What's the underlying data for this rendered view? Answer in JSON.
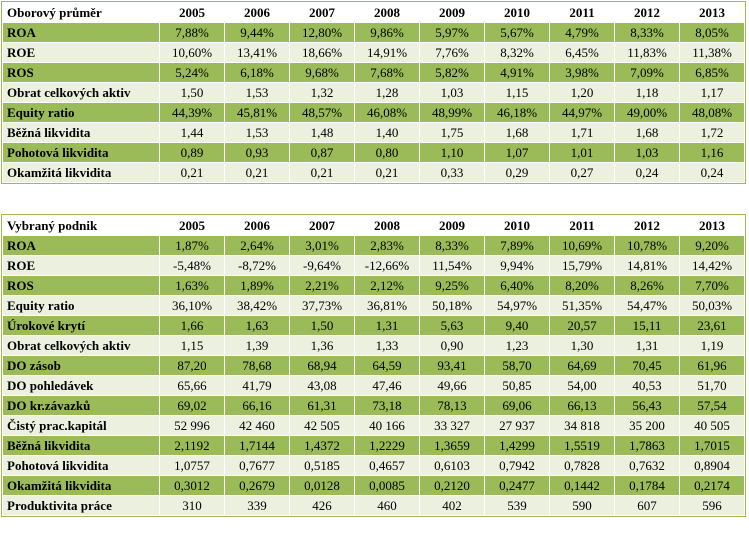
{
  "tables": [
    {
      "title": "Oborový průměr",
      "years": [
        "2005",
        "2006",
        "2007",
        "2008",
        "2009",
        "2010",
        "2011",
        "2012",
        "2013"
      ],
      "rows": [
        {
          "label": "ROA",
          "values": [
            "7,88%",
            "9,44%",
            "12,80%",
            "9,86%",
            "5,97%",
            "5,67%",
            "4,79%",
            "8,33%",
            "8,05%"
          ]
        },
        {
          "label": "ROE",
          "values": [
            "10,60%",
            "13,41%",
            "18,66%",
            "14,91%",
            "7,76%",
            "8,32%",
            "6,45%",
            "11,83%",
            "11,38%"
          ]
        },
        {
          "label": "ROS",
          "values": [
            "5,24%",
            "6,18%",
            "9,68%",
            "7,68%",
            "5,82%",
            "4,91%",
            "3,98%",
            "7,09%",
            "6,85%"
          ]
        },
        {
          "label": "Obrat celkových aktiv",
          "values": [
            "1,50",
            "1,53",
            "1,32",
            "1,28",
            "1,03",
            "1,15",
            "1,20",
            "1,18",
            "1,17"
          ]
        },
        {
          "label": "Equity ratio",
          "values": [
            "44,39%",
            "45,81%",
            "48,57%",
            "46,08%",
            "48,99%",
            "46,18%",
            "44,97%",
            "49,00%",
            "48,08%"
          ]
        },
        {
          "label": "Běžná likvidita",
          "values": [
            "1,44",
            "1,53",
            "1,48",
            "1,40",
            "1,75",
            "1,68",
            "1,71",
            "1,68",
            "1,72"
          ]
        },
        {
          "label": "Pohotová likvidita",
          "values": [
            "0,89",
            "0,93",
            "0,87",
            "0,80",
            "1,10",
            "1,07",
            "1,01",
            "1,03",
            "1,16"
          ]
        },
        {
          "label": "Okamžitá likvidita",
          "values": [
            "0,21",
            "0,21",
            "0,21",
            "0,21",
            "0,33",
            "0,29",
            "0,27",
            "0,24",
            "0,24"
          ]
        }
      ]
    },
    {
      "title": "Vybraný podnik",
      "years": [
        "2005",
        "2006",
        "2007",
        "2008",
        "2009",
        "2010",
        "2011",
        "2012",
        "2013"
      ],
      "rows": [
        {
          "label": "ROA",
          "values": [
            "1,87%",
            "2,64%",
            "3,01%",
            "2,83%",
            "8,33%",
            "7,89%",
            "10,69%",
            "10,78%",
            "9,20%"
          ]
        },
        {
          "label": "ROE",
          "values": [
            "-5,48%",
            "-8,72%",
            "-9,64%",
            "-12,66%",
            "11,54%",
            "9,94%",
            "15,79%",
            "14,81%",
            "14,42%"
          ]
        },
        {
          "label": "ROS",
          "values": [
            "1,63%",
            "1,89%",
            "2,21%",
            "2,12%",
            "9,25%",
            "6,40%",
            "8,20%",
            "8,26%",
            "7,70%"
          ]
        },
        {
          "label": "Equity ratio",
          "values": [
            "36,10%",
            "38,42%",
            "37,73%",
            "36,81%",
            "50,18%",
            "54,97%",
            "51,35%",
            "54,47%",
            "50,03%"
          ]
        },
        {
          "label": "Úrokové krytí",
          "values": [
            "1,66",
            "1,63",
            "1,50",
            "1,31",
            "5,63",
            "9,40",
            "20,57",
            "15,11",
            "23,61"
          ]
        },
        {
          "label": "Obrat celkových aktiv",
          "values": [
            "1,15",
            "1,39",
            "1,36",
            "1,33",
            "0,90",
            "1,23",
            "1,30",
            "1,31",
            "1,19"
          ]
        },
        {
          "label": "DO zásob",
          "values": [
            "87,20",
            "78,68",
            "68,94",
            "64,59",
            "93,41",
            "58,70",
            "64,69",
            "70,45",
            "61,96"
          ]
        },
        {
          "label": "DO pohledávek",
          "values": [
            "65,66",
            "41,79",
            "43,08",
            "47,46",
            "49,66",
            "50,85",
            "54,00",
            "40,53",
            "51,70"
          ]
        },
        {
          "label": "DO kr.závazků",
          "values": [
            "69,02",
            "66,16",
            "61,31",
            "73,18",
            "78,13",
            "69,06",
            "66,13",
            "56,43",
            "57,54"
          ]
        },
        {
          "label": "Čistý prac.kapitál",
          "values": [
            "52 996",
            "42 460",
            "42 505",
            "40 166",
            "33 327",
            "27 937",
            "34 818",
            "35 200",
            "40 505"
          ]
        },
        {
          "label": "Běžná likvidita",
          "values": [
            "2,1192",
            "1,7144",
            "1,4372",
            "1,2229",
            "1,3659",
            "1,4299",
            "1,5519",
            "1,7863",
            "1,7015"
          ]
        },
        {
          "label": "Pohotová likvidita",
          "values": [
            "1,0757",
            "0,7677",
            "0,5185",
            "0,4657",
            "0,6103",
            "0,7942",
            "0,7828",
            "0,7632",
            "0,8904"
          ]
        },
        {
          "label": "Okamžitá likvidita",
          "values": [
            "0,3012",
            "0,2679",
            "0,0128",
            "0,0085",
            "0,2120",
            "0,2477",
            "0,1442",
            "0,1784",
            "0,2174"
          ]
        },
        {
          "label": "Produktivita práce",
          "values": [
            "310",
            "339",
            "426",
            "460",
            "402",
            "539",
            "590",
            "607",
            "596"
          ]
        }
      ]
    }
  ],
  "colors": {
    "row_dark": "#9bbb59",
    "row_light": "#ebf1de",
    "header_bg": "#ffffff"
  }
}
